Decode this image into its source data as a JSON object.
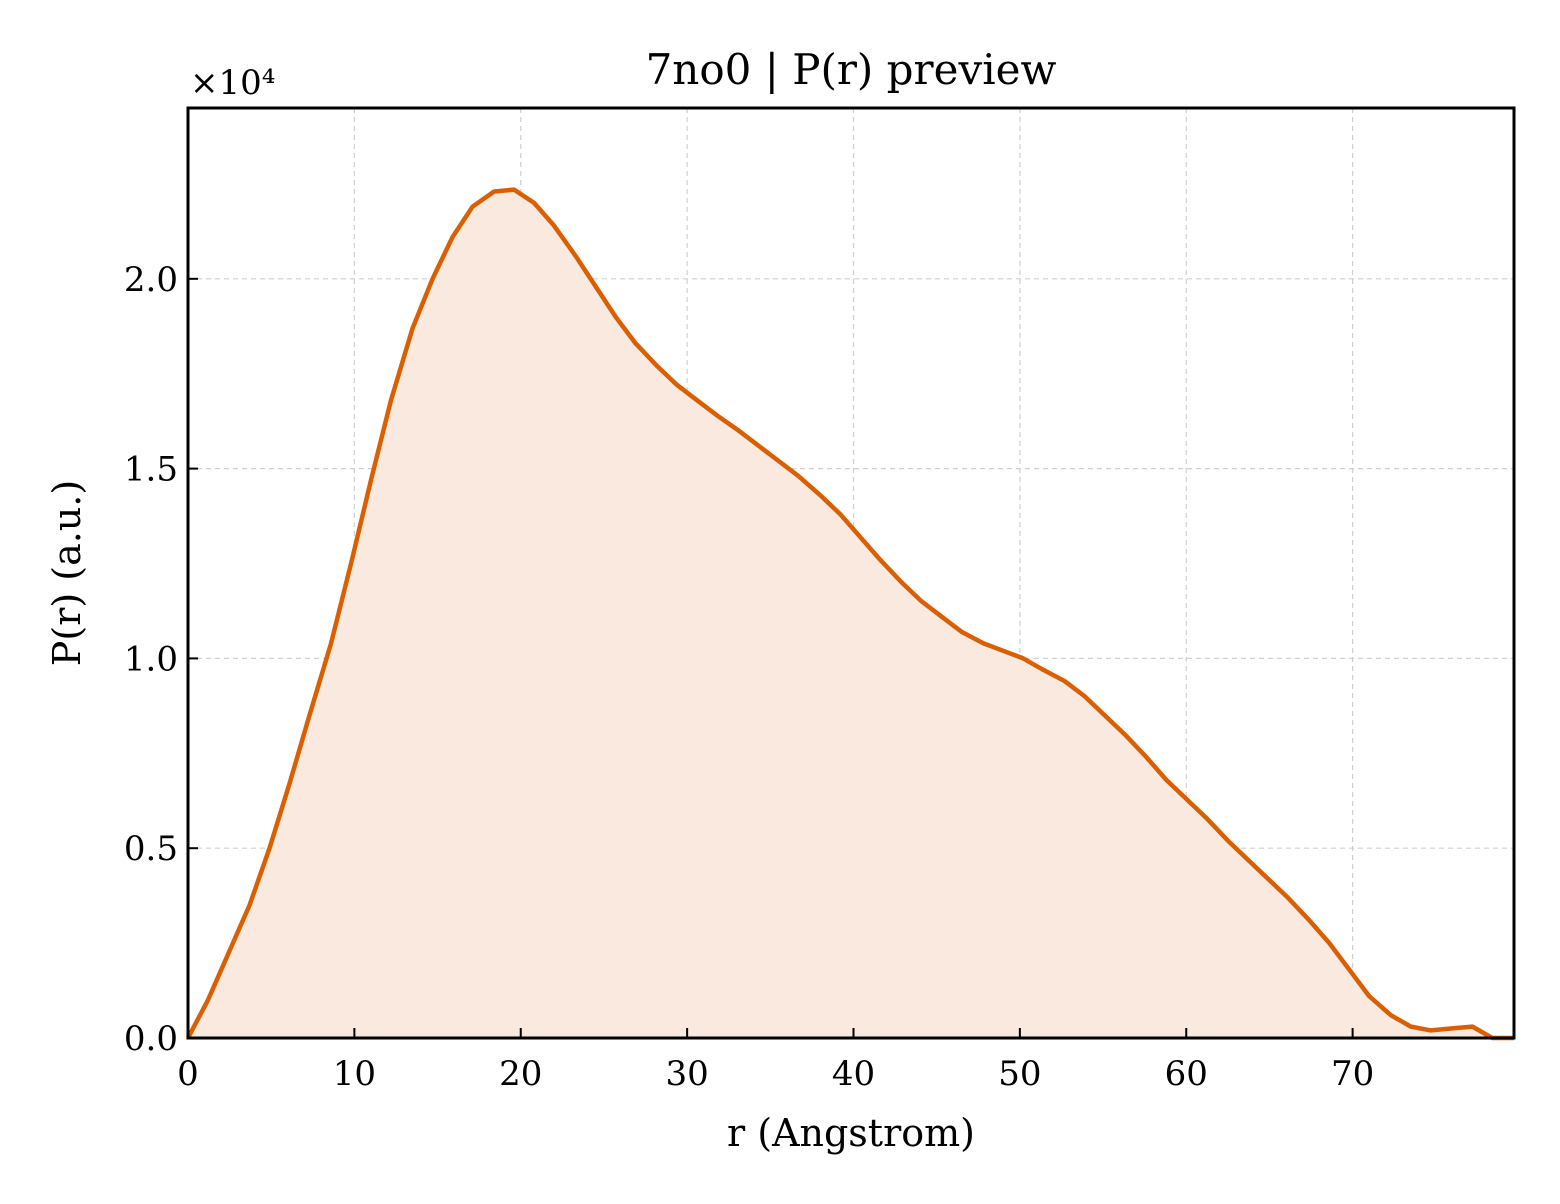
{
  "chart_data": {
    "type": "area",
    "title": "7no0 | P(r) preview",
    "xlabel": "r (Angstrom)",
    "ylabel": "P(r) (a.u.)",
    "y_offset_label": "×10⁴",
    "xlim": [
      0,
      79.7
    ],
    "ylim": [
      0,
      24500
    ],
    "x_ticks": [
      0,
      10,
      20,
      30,
      40,
      50,
      60,
      70
    ],
    "x_tick_labels": [
      "0",
      "10",
      "20",
      "30",
      "40",
      "50",
      "60",
      "70"
    ],
    "y_ticks": [
      0,
      5000,
      10000,
      15000,
      20000
    ],
    "y_tick_labels": [
      "0.0",
      "0.5",
      "1.0",
      "1.5",
      "2.0"
    ],
    "grid": true,
    "line_color": "#d95f02",
    "fill_color": "#f9e9de",
    "series": [
      {
        "x": [
          0,
          1.2,
          2.4,
          3.7,
          4.9,
          6.1,
          7.3,
          8.6,
          9.8,
          11.0,
          12.2,
          13.5,
          14.7,
          15.9,
          17.1,
          18.4,
          19.6,
          20.8,
          22.0,
          23.3,
          24.5,
          25.7,
          26.9,
          28.2,
          29.4,
          30.6,
          31.8,
          33.1,
          34.3,
          35.5,
          36.7,
          38.0,
          39.2,
          40.4,
          41.6,
          42.9,
          44.1,
          45.3,
          46.5,
          47.8,
          49.0,
          50.2,
          51.4,
          52.7,
          53.9,
          55.1,
          56.3,
          57.6,
          58.8,
          60.0,
          61.2,
          62.5,
          63.7,
          64.9,
          66.1,
          67.4,
          68.6,
          69.8,
          71.0,
          72.3,
          73.5,
          74.7,
          75.9,
          77.2,
          78.4,
          79.7
        ],
        "y": [
          0,
          1000,
          2200,
          3500,
          5000,
          6700,
          8500,
          10400,
          12500,
          14700,
          16800,
          18700,
          20000,
          21100,
          21900,
          22300,
          22350,
          22000,
          21400,
          20600,
          19800,
          19000,
          18300,
          17700,
          17200,
          16800,
          16400,
          16000,
          15600,
          15200,
          14800,
          14300,
          13800,
          13200,
          12600,
          12000,
          11500,
          11100,
          10700,
          10400,
          10200,
          10000,
          9700,
          9400,
          9000,
          8500,
          8000,
          7400,
          6800,
          6300,
          5800,
          5200,
          4700,
          4200,
          3700,
          3100,
          2500,
          1800,
          1100,
          600,
          300,
          200,
          250,
          300,
          0,
          0
        ]
      }
    ]
  }
}
